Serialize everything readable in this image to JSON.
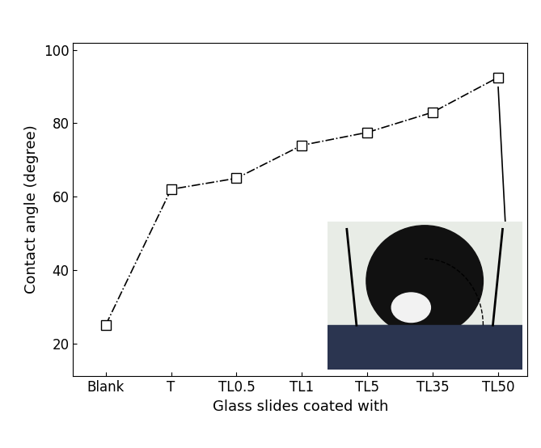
{
  "chart_data": {
    "type": "line",
    "categories": [
      "Blank",
      "T",
      "TL0.5",
      "TL1",
      "TL5",
      "TL35",
      "TL50"
    ],
    "values": [
      25,
      62,
      65,
      74,
      77.5,
      83,
      92.5
    ],
    "x_label": "Glass slides coated with",
    "y_label": "Contact angle (degree)",
    "ylim": [
      11,
      102
    ],
    "yticks": [
      20,
      40,
      60,
      80,
      100
    ],
    "color": "#000000",
    "marker": "square",
    "line_style": "dashdot",
    "grid": false
  }
}
